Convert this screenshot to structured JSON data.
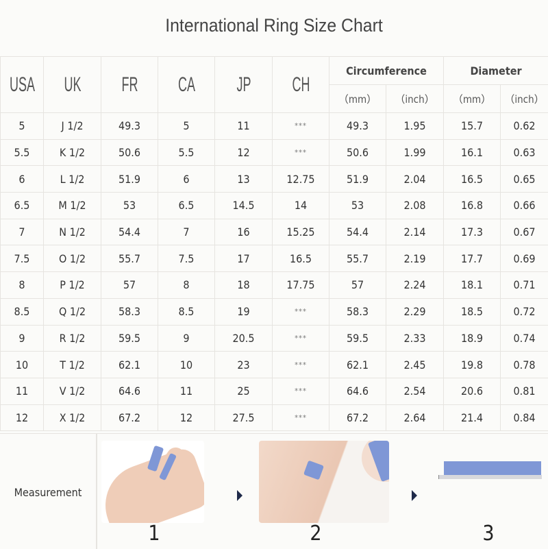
{
  "title": "International Ring Size Chart",
  "headers": {
    "usa": "USA",
    "uk": "UK",
    "fr": "FR",
    "ca": "CA",
    "jp": "JP",
    "ch": "CH",
    "circumference": "Circumference",
    "diameter": "Diameter",
    "mm": "（mm）",
    "inch": "（inch）"
  },
  "rows": [
    [
      "5",
      "J 1/2",
      "49.3",
      "5",
      "11",
      "***",
      "49.3",
      "1.95",
      "15.7",
      "0.62"
    ],
    [
      "5.5",
      "K 1/2",
      "50.6",
      "5.5",
      "12",
      "***",
      "50.6",
      "1.99",
      "16.1",
      "0.63"
    ],
    [
      "6",
      "L 1/2",
      "51.9",
      "6",
      "13",
      "12.75",
      "51.9",
      "2.04",
      "16.5",
      "0.65"
    ],
    [
      "6.5",
      "M 1/2",
      "53",
      "6.5",
      "14.5",
      "14",
      "53",
      "2.08",
      "16.8",
      "0.66"
    ],
    [
      "7",
      "N 1/2",
      "54.4",
      "7",
      "16",
      "15.25",
      "54.4",
      "2.14",
      "17.3",
      "0.67"
    ],
    [
      "7.5",
      "O 1/2",
      "55.7",
      "7.5",
      "17",
      "16.5",
      "55.7",
      "2.19",
      "17.7",
      "0.69"
    ],
    [
      "8",
      "P 1/2",
      "57",
      "8",
      "18",
      "17.75",
      "57",
      "2.24",
      "18.1",
      "0.71"
    ],
    [
      "8.5",
      "Q 1/2",
      "58.3",
      "8.5",
      "19",
      "***",
      "58.3",
      "2.29",
      "18.5",
      "0.72"
    ],
    [
      "9",
      "R 1/2",
      "59.5",
      "9",
      "20.5",
      "***",
      "59.5",
      "2.33",
      "18.9",
      "0.74"
    ],
    [
      "10",
      "T 1/2",
      "62.1",
      "10",
      "23",
      "***",
      "62.1",
      "2.45",
      "19.8",
      "0.78"
    ],
    [
      "11",
      "V 1/2",
      "64.6",
      "11",
      "25",
      "***",
      "64.6",
      "2.54",
      "20.6",
      "0.81"
    ],
    [
      "12",
      "X 1/2",
      "67.2",
      "12",
      "27.5",
      "***",
      "67.2",
      "2.64",
      "21.4",
      "0.84"
    ]
  ],
  "measurement": {
    "label": "Measurement",
    "steps": [
      "1",
      "2",
      "3"
    ]
  },
  "colors": {
    "tape": "#7f97d6",
    "arrow": "#1f2a4a"
  }
}
